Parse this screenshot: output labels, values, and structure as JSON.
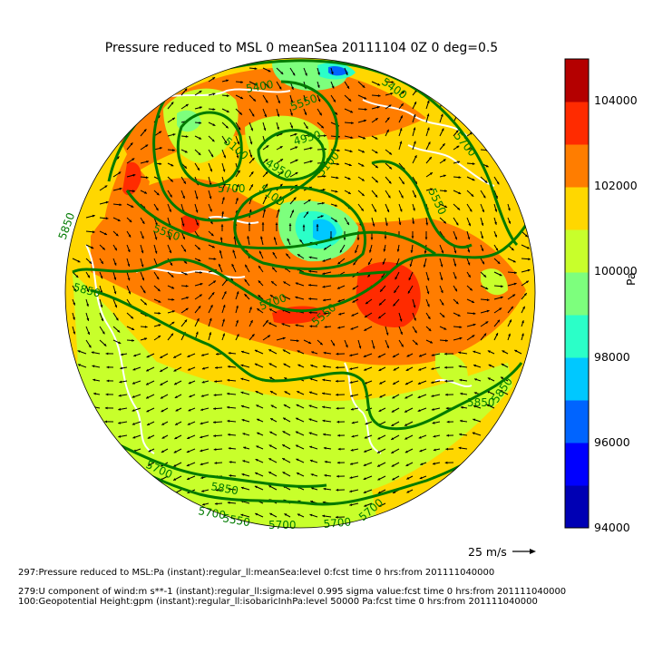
{
  "title": "Pressure reduced to MSL 0 meanSea 20111104 0Z 0 deg=0.5",
  "colorbar": {
    "unit": "Pa",
    "ticks": [
      "94000",
      "96000",
      "98000",
      "100000",
      "102000",
      "104000"
    ],
    "colors": [
      "#0000b4",
      "#0000ff",
      "#0064ff",
      "#00c8ff",
      "#2bffc8",
      "#7dff7d",
      "#c8ff2b",
      "#ffd700",
      "#ff7d00",
      "#ff2b00",
      "#b40000"
    ]
  },
  "contour_labels": [
    "5400",
    "5400",
    "5550",
    "5700",
    "5100",
    "4950",
    "4950",
    "5100",
    "5100",
    "5550",
    "5700",
    "5850",
    "5550",
    "5850",
    "5700",
    "5550",
    "5850",
    "5850",
    "5850",
    "5700",
    "5550",
    "5700",
    "5700",
    "5700",
    "5700"
  ],
  "quiver_key": {
    "label": "25 m/s"
  },
  "footnotes": [
    "297:Pressure reduced to MSL:Pa (instant):regular_ll:meanSea:level 0:fcst time 0 hrs:from 201111040000",
    "279:U component of wind:m s**-1 (instant):regular_ll:sigma:level 0.995 sigma value:fcst time 0 hrs:from 201111040000",
    "100:Geopotential Height:gpm (instant):regular_ll:isobaricInhPa:level 50000 Pa:fcst time 0 hrs:from 201111040000"
  ],
  "map_colors": {
    "contour": "#007a00",
    "coast": "#ffffff",
    "arrow": "#000000"
  }
}
